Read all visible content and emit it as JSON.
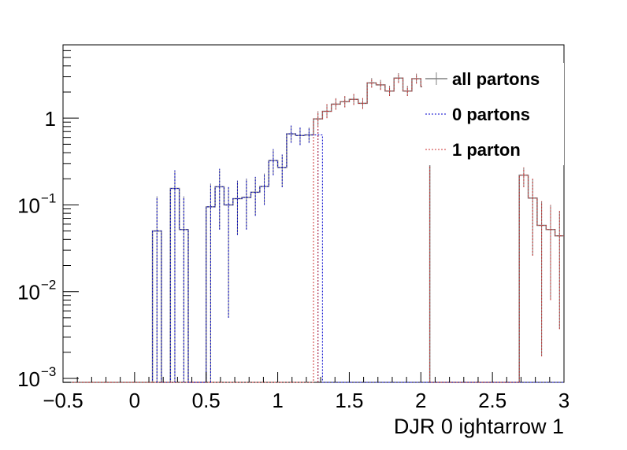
{
  "chart_data": {
    "type": "histogram",
    "title": "",
    "xlabel": "DJR 0 ightarrow 1",
    "ylabel": "",
    "xlim": [
      -0.5,
      3.0
    ],
    "ylim": [
      0.0009,
      7
    ],
    "yscale": "log",
    "grid": false,
    "legend_position": "top-right",
    "x_ticks": [
      {
        "value": -0.5,
        "label": "−0.5"
      },
      {
        "value": 0,
        "label": "0"
      },
      {
        "value": 0.5,
        "label": "0.5"
      },
      {
        "value": 1,
        "label": "1"
      },
      {
        "value": 1.5,
        "label": "1.5"
      },
      {
        "value": 2,
        "label": "2"
      },
      {
        "value": 2.5,
        "label": "2.5"
      },
      {
        "value": 3,
        "label": "3"
      }
    ],
    "y_ticks": [
      {
        "value": 0.001,
        "base": "10",
        "exp": "−3"
      },
      {
        "value": 0.01,
        "base": "10",
        "exp": "−2"
      },
      {
        "value": 0.1,
        "base": "10",
        "exp": "−1"
      },
      {
        "value": 1,
        "base": "1",
        "exp": ""
      }
    ],
    "bin_width": 0.0625,
    "series": [
      {
        "name": "all partons",
        "color": "#808080",
        "style": "solid",
        "bins": [
          {
            "lo": 0.125,
            "y": 0.05,
            "err_lo": 0.0005,
            "err_hi": 0.125
          },
          {
            "lo": 0.1875,
            "y": 0.0009,
            "err_lo": 0.0,
            "err_hi": 0.0
          },
          {
            "lo": 0.25,
            "y": 0.155,
            "err_lo": 0.0006,
            "err_hi": 0.25
          },
          {
            "lo": 0.3125,
            "y": 0.052,
            "err_lo": 0.0006,
            "err_hi": 0.125
          },
          {
            "lo": 0.375,
            "y": 0.0009,
            "err_lo": 0.0,
            "err_hi": 0.0
          },
          {
            "lo": 0.4375,
            "y": 0.0009,
            "err_lo": 0.0,
            "err_hi": 0.0
          },
          {
            "lo": 0.5,
            "y": 0.095,
            "err_lo": 0.0006,
            "err_hi": 0.175
          },
          {
            "lo": 0.5625,
            "y": 0.162,
            "err_lo": 0.052,
            "err_hi": 0.26
          },
          {
            "lo": 0.625,
            "y": 0.1,
            "err_lo": 0.005,
            "err_hi": 0.16
          },
          {
            "lo": 0.6875,
            "y": 0.118,
            "err_lo": 0.045,
            "err_hi": 0.19
          },
          {
            "lo": 0.75,
            "y": 0.122,
            "err_lo": 0.052,
            "err_hi": 0.2
          },
          {
            "lo": 0.8125,
            "y": 0.14,
            "err_lo": 0.075,
            "err_hi": 0.21
          },
          {
            "lo": 0.875,
            "y": 0.163,
            "err_lo": 0.1,
            "err_hi": 0.23
          },
          {
            "lo": 0.9375,
            "y": 0.325,
            "err_lo": 0.22,
            "err_hi": 0.44
          },
          {
            "lo": 1.0,
            "y": 0.27,
            "err_lo": 0.16,
            "err_hi": 0.38
          },
          {
            "lo": 1.0625,
            "y": 0.66,
            "err_lo": 0.52,
            "err_hi": 0.82
          },
          {
            "lo": 1.125,
            "y": 0.63,
            "err_lo": 0.49,
            "err_hi": 0.78
          },
          {
            "lo": 1.1875,
            "y": 0.64,
            "err_lo": 0.52,
            "err_hi": 0.78
          },
          {
            "lo": 1.25,
            "y": 0.98,
            "err_lo": 0.8,
            "err_hi": 1.2
          },
          {
            "lo": 1.3125,
            "y": 1.2,
            "err_lo": 1.0,
            "err_hi": 1.45
          },
          {
            "lo": 1.375,
            "y": 1.45,
            "err_lo": 1.25,
            "err_hi": 1.7
          },
          {
            "lo": 1.4375,
            "y": 1.55,
            "err_lo": 1.33,
            "err_hi": 1.8
          },
          {
            "lo": 1.5,
            "y": 1.65,
            "err_lo": 1.42,
            "err_hi": 1.9
          },
          {
            "lo": 1.5625,
            "y": 1.48,
            "err_lo": 1.28,
            "err_hi": 1.7
          },
          {
            "lo": 1.625,
            "y": 2.55,
            "err_lo": 2.25,
            "err_hi": 2.9
          },
          {
            "lo": 1.6875,
            "y": 2.42,
            "err_lo": 2.12,
            "err_hi": 2.75
          },
          {
            "lo": 1.75,
            "y": 2.05,
            "err_lo": 1.8,
            "err_hi": 2.35
          },
          {
            "lo": 1.8125,
            "y": 2.9,
            "err_lo": 2.55,
            "err_hi": 3.3
          },
          {
            "lo": 1.875,
            "y": 2.05,
            "err_lo": 1.8,
            "err_hi": 2.35
          },
          {
            "lo": 1.9375,
            "y": 2.85,
            "err_lo": 2.5,
            "err_hi": 3.25
          },
          {
            "lo": 2.0,
            "y": 2.3,
            "err_lo": 2.0,
            "err_hi": 2.65
          },
          {
            "lo": 2.6875,
            "y": 0.22,
            "err_lo": 0.16,
            "err_hi": 0.27
          },
          {
            "lo": 2.75,
            "y": 0.12,
            "err_lo": 0.026,
            "err_hi": 0.2
          },
          {
            "lo": 2.8125,
            "y": 0.058,
            "err_lo": 0.0018,
            "err_hi": 0.11
          },
          {
            "lo": 2.875,
            "y": 0.052,
            "err_lo": 0.008,
            "err_hi": 0.1
          },
          {
            "lo": 2.9375,
            "y": 0.044,
            "err_lo": 0.0037,
            "err_hi": 0.085
          }
        ]
      },
      {
        "name": "0 partons",
        "color": "#0000cc",
        "style": "dotted",
        "bins": [
          {
            "lo": 0.125,
            "y": 0.05,
            "err_lo": 0.0005,
            "err_hi": 0.125
          },
          {
            "lo": 0.1875,
            "y": 0.0009,
            "err_lo": 0.0,
            "err_hi": 0.0
          },
          {
            "lo": 0.25,
            "y": 0.155,
            "err_lo": 0.0006,
            "err_hi": 0.25
          },
          {
            "lo": 0.3125,
            "y": 0.052,
            "err_lo": 0.0006,
            "err_hi": 0.125
          },
          {
            "lo": 0.375,
            "y": 0.0009,
            "err_lo": 0.0,
            "err_hi": 0.0
          },
          {
            "lo": 0.4375,
            "y": 0.0009,
            "err_lo": 0.0,
            "err_hi": 0.0
          },
          {
            "lo": 0.5,
            "y": 0.095,
            "err_lo": 0.0006,
            "err_hi": 0.175
          },
          {
            "lo": 0.5625,
            "y": 0.162,
            "err_lo": 0.052,
            "err_hi": 0.26
          },
          {
            "lo": 0.625,
            "y": 0.1,
            "err_lo": 0.005,
            "err_hi": 0.16
          },
          {
            "lo": 0.6875,
            "y": 0.118,
            "err_lo": 0.045,
            "err_hi": 0.19
          },
          {
            "lo": 0.75,
            "y": 0.122,
            "err_lo": 0.052,
            "err_hi": 0.2
          },
          {
            "lo": 0.8125,
            "y": 0.14,
            "err_lo": 0.075,
            "err_hi": 0.21
          },
          {
            "lo": 0.875,
            "y": 0.163,
            "err_lo": 0.1,
            "err_hi": 0.23
          },
          {
            "lo": 0.9375,
            "y": 0.325,
            "err_lo": 0.22,
            "err_hi": 0.44
          },
          {
            "lo": 1.0,
            "y": 0.27,
            "err_lo": 0.16,
            "err_hi": 0.38
          },
          {
            "lo": 1.0625,
            "y": 0.66,
            "err_lo": 0.52,
            "err_hi": 0.82
          },
          {
            "lo": 1.125,
            "y": 0.63,
            "err_lo": 0.49,
            "err_hi": 0.78
          },
          {
            "lo": 1.1875,
            "y": 0.64,
            "err_lo": 0.52,
            "err_hi": 0.78
          },
          {
            "lo": 1.25,
            "y": 0.64,
            "err_lo": 0.0009,
            "err_hi": 0.78
          },
          {
            "lo": 1.3125,
            "y": 0.0009,
            "err_lo": 0.0,
            "err_hi": 0.0
          }
        ]
      },
      {
        "name": "1 parton",
        "color": "#cc3333",
        "style": "dotted",
        "bins": [
          {
            "lo": 1.25,
            "y": 0.98,
            "err_lo": 0.0009,
            "err_hi": 1.2
          },
          {
            "lo": 1.3125,
            "y": 1.2,
            "err_lo": 1.0,
            "err_hi": 1.45
          },
          {
            "lo": 1.375,
            "y": 1.45,
            "err_lo": 1.25,
            "err_hi": 1.7
          },
          {
            "lo": 1.4375,
            "y": 1.55,
            "err_lo": 1.33,
            "err_hi": 1.8
          },
          {
            "lo": 1.5,
            "y": 1.65,
            "err_lo": 1.42,
            "err_hi": 1.9
          },
          {
            "lo": 1.5625,
            "y": 1.48,
            "err_lo": 1.28,
            "err_hi": 1.7
          },
          {
            "lo": 1.625,
            "y": 2.55,
            "err_lo": 2.25,
            "err_hi": 2.9
          },
          {
            "lo": 1.6875,
            "y": 2.42,
            "err_lo": 2.12,
            "err_hi": 2.75
          },
          {
            "lo": 1.75,
            "y": 2.05,
            "err_lo": 1.8,
            "err_hi": 2.35
          },
          {
            "lo": 1.8125,
            "y": 2.9,
            "err_lo": 2.55,
            "err_hi": 3.3
          },
          {
            "lo": 1.875,
            "y": 2.05,
            "err_lo": 1.8,
            "err_hi": 2.35
          },
          {
            "lo": 1.9375,
            "y": 2.85,
            "err_lo": 2.5,
            "err_hi": 3.25
          },
          {
            "lo": 2.0,
            "y": 2.3,
            "err_lo": 2.0,
            "err_hi": 2.65
          },
          {
            "lo": 2.6875,
            "y": 0.22,
            "err_lo": 0.16,
            "err_hi": 0.27
          },
          {
            "lo": 2.75,
            "y": 0.12,
            "err_lo": 0.026,
            "err_hi": 0.2
          },
          {
            "lo": 2.8125,
            "y": 0.058,
            "err_lo": 0.0018,
            "err_hi": 0.11
          },
          {
            "lo": 2.875,
            "y": 0.052,
            "err_lo": 0.008,
            "err_hi": 0.1
          },
          {
            "lo": 2.9375,
            "y": 0.044,
            "err_lo": 0.0037,
            "err_hi": 0.085
          }
        ]
      }
    ]
  }
}
